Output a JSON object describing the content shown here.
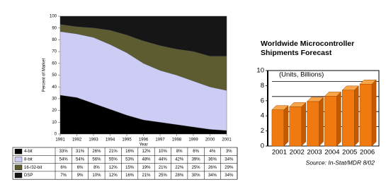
{
  "chart_data": [
    {
      "type": "area",
      "stacked": true,
      "ylabel": "Percent of Market",
      "xlabel": "Year",
      "x": [
        1991,
        1992,
        1993,
        1994,
        1995,
        1996,
        1997,
        1998,
        1999,
        2000,
        2001
      ],
      "xlim": [
        1991,
        2001
      ],
      "xticks": [
        1991,
        1992,
        1993,
        1994,
        1995,
        1996,
        1997,
        1998,
        1999,
        2000,
        2001
      ],
      "ylim": [
        0,
        100
      ],
      "yticks": [
        0,
        10,
        20,
        30,
        40,
        50,
        60,
        70,
        80,
        90,
        100
      ],
      "series": [
        {
          "name": "4-bit",
          "color": "#000000",
          "values": [
            33,
            31,
            26,
            21,
            16,
            12,
            10,
            8,
            6,
            4,
            3
          ],
          "value_labels": [
            "33%",
            "31%",
            "26%",
            "21%",
            "16%",
            "12%",
            "10%",
            "8%",
            "6%",
            "4%",
            "3%"
          ]
        },
        {
          "name": "8-bit",
          "color": "#ccccf4",
          "values": [
            54,
            54,
            56,
            55,
            53,
            48,
            44,
            42,
            39,
            36,
            34
          ],
          "value_labels": [
            "54%",
            "54%",
            "56%",
            "55%",
            "53%",
            "48%",
            "44%",
            "42%",
            "39%",
            "36%",
            "34%"
          ]
        },
        {
          "name": "16-/32-bit",
          "color": "#5c5c30",
          "values": [
            6,
            6,
            8,
            12,
            15,
            19,
            21,
            22,
            25,
            26,
            29
          ],
          "value_labels": [
            "6%",
            "6%",
            "8%",
            "12%",
            "15%",
            "19%",
            "21%",
            "22%",
            "25%",
            "26%",
            "29%"
          ]
        },
        {
          "name": "DSP",
          "color": "#161616",
          "values": [
            7,
            9,
            10,
            12,
            16,
            21,
            25,
            28,
            30,
            34,
            34
          ],
          "value_labels": [
            "7%",
            "9%",
            "10%",
            "12%",
            "16%",
            "21%",
            "25%",
            "28%",
            "30%",
            "34%",
            "34%"
          ]
        }
      ]
    },
    {
      "type": "bar",
      "title": "Worldwide Microcontroller Shipments Forecast",
      "annotation": "(Units, Billions)",
      "source": "Source: In-Stat/MDR 8/02",
      "categories": [
        "2001",
        "2002",
        "2003",
        "2004",
        "2005",
        "2006"
      ],
      "values": [
        4.8,
        5.2,
        5.9,
        6.6,
        7.4,
        8.2
      ],
      "color": "#f07a10",
      "ylim": [
        0,
        10
      ],
      "yticks": [
        0,
        2,
        4,
        6,
        8,
        10
      ],
      "grid": true
    }
  ]
}
